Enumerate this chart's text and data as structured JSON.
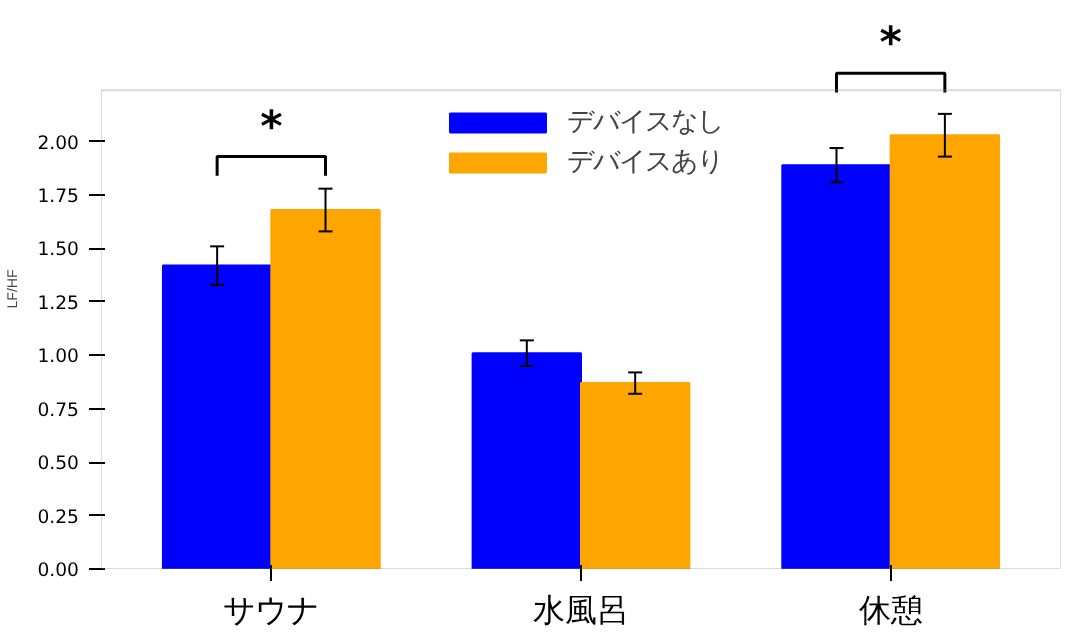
{
  "chart_data": {
    "type": "bar",
    "categories": [
      "サウナ",
      "水風呂",
      "休憩"
    ],
    "ylabel": "LF/HF",
    "series": [
      {
        "name": "デバイスなし",
        "color": "#0000ff",
        "values": [
          1.42,
          1.01,
          1.89
        ],
        "errors": [
          0.09,
          0.06,
          0.08
        ]
      },
      {
        "name": "デバイスあり",
        "color": "#ffa500",
        "values": [
          1.68,
          0.87,
          2.03
        ],
        "errors": [
          0.1,
          0.05,
          0.1
        ]
      }
    ],
    "ylim": [
      0,
      2.24
    ],
    "yticks": [
      {
        "value": 0,
        "label": "0.00"
      },
      {
        "value": 0.25,
        "label": "0.25"
      },
      {
        "value": 0.5,
        "label": "0.50"
      },
      {
        "value": 0.75,
        "label": "0.75"
      },
      {
        "value": 1,
        "label": "1.00"
      },
      {
        "value": 1.25,
        "label": "1.25"
      },
      {
        "value": 1.5,
        "label": "1.50"
      },
      {
        "value": 1.75,
        "label": "1.75"
      },
      {
        "value": 2,
        "label": "2.00"
      }
    ],
    "annotations": [
      "*",
      "*"
    ],
    "legend": "top",
    "grid": false
  }
}
